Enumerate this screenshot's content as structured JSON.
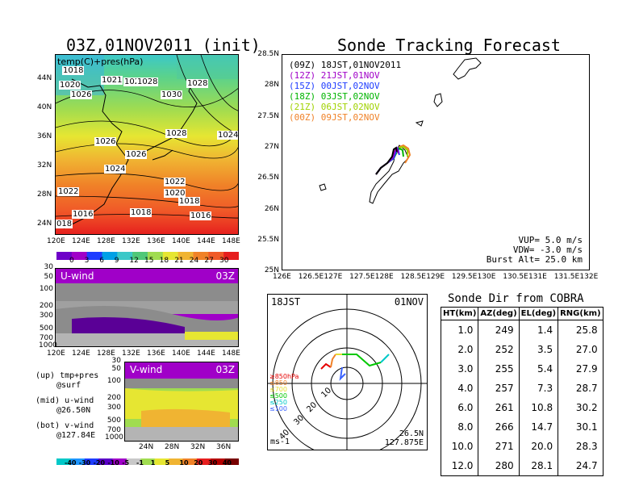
{
  "left_title": "03Z,01NOV2011  (init)",
  "right_title": "Sonde Tracking Forecast",
  "panel_top": {
    "label": "temp(C)+pres(hPa)",
    "lat_ticks": [
      "44N",
      "40N",
      "36N",
      "32N",
      "28N",
      "24N"
    ],
    "lon_ticks": [
      "120E",
      "124E",
      "128E",
      "132E",
      "136E",
      "140E",
      "144E",
      "148E"
    ],
    "pressure_labels": [
      "1018",
      "1020",
      "1021",
      "1026",
      "1026",
      "1028",
      "1030",
      "1028",
      "1026",
      "1028",
      "1024",
      "1026",
      "1024",
      "1022",
      "1020",
      "1018",
      "1022",
      "1018",
      "1016",
      "1016",
      "018"
    ],
    "colorbar_ticks": [
      "0",
      "3",
      "6",
      "9",
      "12",
      "15",
      "18",
      "21",
      "24",
      "27",
      "30"
    ]
  },
  "panel_u": {
    "label": "U-wind",
    "time": "03Z",
    "y_ticks": [
      "30",
      "50",
      "100",
      "200",
      "300",
      "500",
      "700",
      "1000"
    ],
    "x_ticks": [
      "120E",
      "124E",
      "128E",
      "132E",
      "136E",
      "140E",
      "144E",
      "148E"
    ]
  },
  "panel_v": {
    "label": "V-wind",
    "time": "03Z",
    "y_ticks": [
      "30",
      "50",
      "100",
      "200",
      "300",
      "500",
      "700",
      "1000"
    ],
    "x_ticks": [
      "24N",
      "28N",
      "32N",
      "36N"
    ]
  },
  "notes": [
    {
      "k": "(up) tmp+pres",
      "v": "@surf"
    },
    {
      "k": "(mid) u-wind",
      "v": "@26.50N"
    },
    {
      "k": "(bot) v-wind",
      "v": "@127.84E"
    }
  ],
  "wind_colorbar_ticks": [
    "-40",
    "-30",
    "-20",
    "-10",
    "-5",
    "-1",
    "1",
    "5",
    "10",
    "20",
    "30",
    "40"
  ],
  "track_panel": {
    "y_ticks": [
      "28.5N",
      "28N",
      "27.5N",
      "27N",
      "26.5N",
      "26N",
      "25.5N",
      "25N"
    ],
    "x_ticks": [
      "126E",
      "126.5E",
      "127E",
      "127.5E",
      "128E",
      "128.5E",
      "129E",
      "129.5E",
      "130E",
      "130.5E",
      "131E",
      "131.5E",
      "132E"
    ],
    "legend": [
      {
        "code": "(09Z)",
        "text": "18JST,01NOV2011",
        "color": "#000000"
      },
      {
        "code": "(12Z)",
        "text": "21JST,01NOV",
        "color": "#a000c8"
      },
      {
        "code": "(15Z)",
        "text": "00JST,02NOV",
        "color": "#1e3cff"
      },
      {
        "code": "(18Z)",
        "text": "03JST,02NOV",
        "color": "#00b400"
      },
      {
        "code": "(21Z)",
        "text": "06JST,02NOV",
        "color": "#a0d200"
      },
      {
        "code": "(00Z)",
        "text": "09JST,02NOV",
        "color": "#f08228"
      }
    ],
    "params": [
      "VUP= 5.0 m/s",
      "VDW= -3.0 m/s",
      "Burst Alt= 25.0 km"
    ]
  },
  "polar": {
    "time": "18JST",
    "date": "01NOV",
    "ring_labels": [
      "10",
      "20",
      "30",
      "40"
    ],
    "level_legend": [
      {
        "text": "≥850hPa",
        "color": "#e60000"
      },
      {
        "text": "≤850",
        "color": "#f08228"
      },
      {
        "text": "≤700",
        "color": "#e6dc32"
      },
      {
        "text": "≤500",
        "color": "#00c800"
      },
      {
        "text": "≤250",
        "color": "#00c8c8"
      },
      {
        "text": "≤100",
        "color": "#3c64ff"
      }
    ],
    "unit": "ms-1",
    "loc_lat": "26.5N",
    "loc_lon": "127.875E"
  },
  "table": {
    "title": "Sonde Dir from COBRA",
    "headers": [
      "HT(km)",
      "AZ(deg)",
      "EL(deg)",
      "RNG(km)"
    ],
    "rows": [
      [
        "1.0",
        "249",
        "1.4",
        "25.8"
      ],
      [
        "2.0",
        "252",
        "3.5",
        "27.0"
      ],
      [
        "3.0",
        "255",
        "5.4",
        "27.9"
      ],
      [
        "4.0",
        "257",
        "7.3",
        "28.7"
      ],
      [
        "6.0",
        "261",
        "10.8",
        "30.2"
      ],
      [
        "8.0",
        "266",
        "14.7",
        "30.1"
      ],
      [
        "10.0",
        "271",
        "20.0",
        "28.3"
      ],
      [
        "12.0",
        "280",
        "28.1",
        "24.7"
      ]
    ]
  }
}
